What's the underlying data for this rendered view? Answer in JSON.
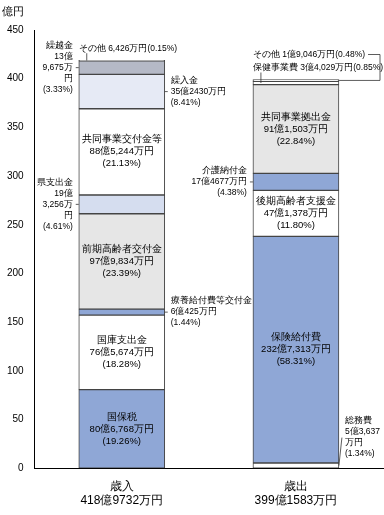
{
  "chart_data": {
    "type": "bar",
    "stacked": true,
    "grid": false,
    "data_labels": true,
    "y_label": "億円",
    "ylim": [
      0,
      450
    ],
    "yticks": [
      0,
      50,
      100,
      150,
      200,
      250,
      300,
      350,
      400,
      450
    ],
    "categories": [
      "歳入",
      "歳出"
    ],
    "totals": [
      418.9732,
      399.1583
    ],
    "total_labels": [
      "418億9732万円",
      "399億1583万円"
    ],
    "series": [
      {
        "name": "国保税",
        "color": "#8fa7d6",
        "values": [
          80.6768,
          null
        ],
        "value_labels": [
          "80億6,768万円",
          null
        ],
        "share_labels": [
          "(19.26%)",
          null
        ]
      },
      {
        "name": "国庫支出金",
        "color": "#ffffff",
        "values": [
          76.5674,
          null
        ],
        "value_labels": [
          "76億5,674万円",
          null
        ],
        "share_labels": [
          "(18.28%)",
          null
        ]
      },
      {
        "name": "療養給付費等交付金",
        "color": "#8fa7d6",
        "values": [
          6.0425,
          null
        ],
        "value_labels": [
          "6億425万円",
          null
        ],
        "share_labels": [
          "(1.44%)",
          null
        ]
      },
      {
        "name": "前期高齢者交付金",
        "color": "#e6e6e6",
        "values": [
          97.9834,
          null
        ],
        "value_labels": [
          "97億9,834万円",
          null
        ],
        "share_labels": [
          "(23.39%)",
          null
        ]
      },
      {
        "name": "県支出金",
        "color": "#d5ddef",
        "values": [
          19.3256,
          null
        ],
        "value_labels": [
          "19億3,256万円",
          null
        ],
        "share_labels": [
          "(4.61%)",
          null
        ]
      },
      {
        "name": "共同事業交付金等",
        "color": "#ffffff",
        "values": [
          88.5244,
          null
        ],
        "value_labels": [
          "88億5,244万円",
          null
        ],
        "share_labels": [
          "(21.13%)",
          null
        ]
      },
      {
        "name": "繰入金",
        "color": "#e6eaf5",
        "values": [
          35.243,
          null
        ],
        "value_labels": [
          "35億2430万円",
          null
        ],
        "share_labels": [
          "(8.41%)",
          null
        ]
      },
      {
        "name": "繰越金",
        "color": "#b5b9c6",
        "values": [
          13.9675,
          null
        ],
        "value_labels": [
          "13億9,675万円",
          null
        ],
        "share_labels": [
          "(3.33%)",
          null
        ]
      },
      {
        "name": "その他",
        "color": "#ffffff",
        "values": [
          0.6426,
          null
        ],
        "value_labels": [
          "6,426万円",
          null
        ],
        "share_labels": [
          "(0.15%)",
          null
        ]
      },
      {
        "name": "総務費",
        "color": "#ffffff",
        "values": [
          null,
          5.3637
        ],
        "value_labels": [
          null,
          "5億3,637万円"
        ],
        "share_labels": [
          null,
          "(1.34%)"
        ]
      },
      {
        "name": "保険給付費",
        "color": "#8fa7d6",
        "values": [
          null,
          232.7313
        ],
        "value_labels": [
          null,
          "232億7,313万円"
        ],
        "share_labels": [
          null,
          "(58.31%)"
        ]
      },
      {
        "name": "後期高齢者支援金",
        "color": "#ffffff",
        "values": [
          null,
          47.1378
        ],
        "value_labels": [
          null,
          "47億1,378万円"
        ],
        "share_labels": [
          null,
          "(11.80%)"
        ]
      },
      {
        "name": "介護納付金",
        "color": "#8fa7d6",
        "values": [
          null,
          17.4677
        ],
        "value_labels": [
          null,
          "17億4677万円"
        ],
        "share_labels": [
          null,
          "(4.38%)"
        ]
      },
      {
        "name": "共同事業拠出金",
        "color": "#e6e6e6",
        "values": [
          null,
          91.1503
        ],
        "value_labels": [
          null,
          "91億1,503万円"
        ],
        "share_labels": [
          null,
          "(22.84%)"
        ]
      },
      {
        "name": "保健事業費",
        "color": "#ffffff",
        "values": [
          null,
          3.4029
        ],
        "value_labels": [
          null,
          "3億4,029万円"
        ],
        "share_labels": [
          null,
          "(0.85%)"
        ]
      },
      {
        "name": "その他",
        "color": "#ffffff",
        "values": [
          null,
          1.9046
        ],
        "value_labels": [
          null,
          "1億9,046万円"
        ],
        "share_labels": [
          null,
          "(0.48%)"
        ]
      }
    ]
  }
}
